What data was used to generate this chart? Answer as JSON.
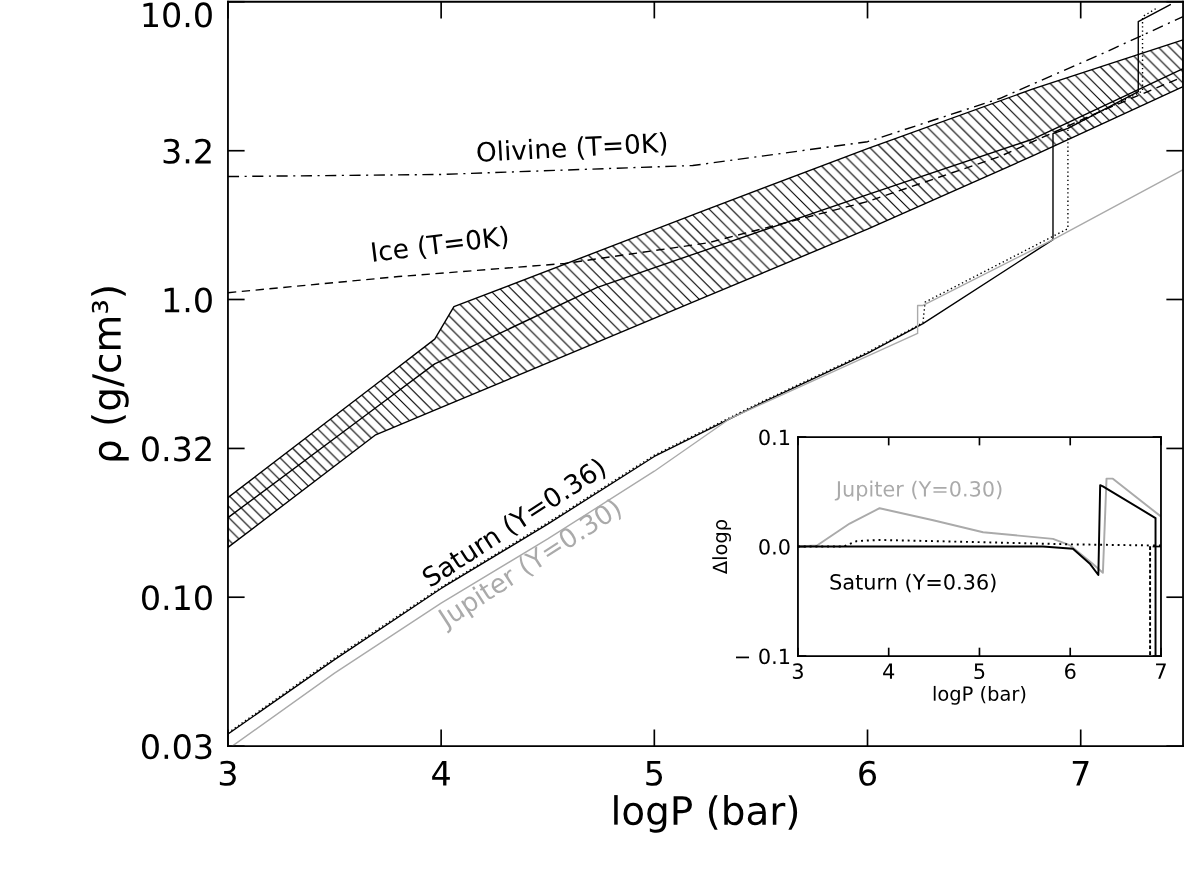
{
  "chart_data": [
    {
      "type": "line",
      "xlabel": "logP (bar)",
      "ylabel": "ρ (g/cm³)",
      "log": "y",
      "xlim": [
        3,
        7.48
      ],
      "xticks": [
        3,
        4,
        5,
        6,
        7
      ],
      "ylim": [
        0.0316,
        10
      ],
      "yticks": [
        {
          "value": 0.0316,
          "label": "0.03"
        },
        {
          "value": 0.1,
          "label": "0.10"
        },
        {
          "value": 0.316,
          "label": "0.32"
        },
        {
          "value": 1,
          "label": "1.0"
        },
        {
          "value": 3.16,
          "label": "3.2"
        },
        {
          "value": 10,
          "label": "10.0"
        }
      ],
      "grid": false,
      "series": [
        {
          "color": "#000000",
          "line_style": "solid",
          "x": [
            3,
            3.69,
            3.97,
            4.06,
            4.73,
            5.22,
            6.0,
            6.78,
            7.48
          ],
          "values": [
            0.185,
            0.431,
            0.608,
            0.652,
            1.096,
            1.449,
            2.249,
            3.467,
            5.957
          ],
          "lower": [
            0.147,
            0.35,
            0.425,
            0.452,
            0.718,
            1.007,
            1.722,
            3.048,
            5.188
          ],
          "upper": [
            0.216,
            0.516,
            0.736,
            0.946,
            1.445,
            1.972,
            3.214,
            5.105,
            7.447
          ]
        },
        {
          "name": "Ice (T=0K)",
          "color": "#000000",
          "line_style": "dashed",
          "x": [
            3,
            3.8,
            4.58,
            5.25,
            6.0,
            6.62,
            7.09,
            7.48
          ],
          "values": [
            1.054,
            1.194,
            1.321,
            1.549,
            2.133,
            3.02,
            4.276,
            5.598
          ]
        },
        {
          "name": "Olivine (T=0K)",
          "color": "#000000",
          "line_style": "dashdot",
          "x": [
            3,
            4.0,
            5.18,
            6.0,
            6.62,
            7.09,
            7.48
          ],
          "values": [
            2.588,
            2.63,
            2.818,
            3.388,
            4.732,
            6.637,
            8.913
          ]
        },
        {
          "name": "Saturn (Y=0.36)",
          "color": "#000000",
          "line_style": "solid",
          "x": [
            3,
            3.5,
            4,
            4.5,
            5,
            5.5,
            6,
            6.26,
            6.87,
            6.87,
            6.94,
            7.27,
            7.27,
            7.42
          ],
          "values": [
            0.0347,
            0.0617,
            0.107,
            0.176,
            0.297,
            0.448,
            0.659,
            0.83,
            1.589,
            3.606,
            3.758,
            4.989,
            8.57,
            9.772
          ]
        },
        {
          "color": "#000000",
          "line_style": "dotted",
          "x": [
            3,
            3.5,
            4,
            4.5,
            5,
            5.5,
            6,
            6.26,
            6.27,
            6.94,
            6.94,
            7.29,
            7.29,
            7.36
          ],
          "values": [
            0.035,
            0.0625,
            0.108,
            0.178,
            0.3,
            0.452,
            0.665,
            0.835,
            0.98,
            1.73,
            3.776,
            5.012,
            8.913,
            9.55
          ]
        },
        {
          "name": "Jupiter (Y=0.30)",
          "color": "#aaaaaa",
          "line_style": "solid",
          "x": [
            3.02,
            3.5,
            4,
            4.5,
            5,
            5.357,
            6.235,
            6.235,
            6.26,
            6.87,
            7.48
          ],
          "values": [
            0.0316,
            0.0556,
            0.0955,
            0.157,
            0.265,
            0.399,
            0.769,
            0.955,
            0.955,
            1.589,
            2.729
          ]
        }
      ]
    },
    {
      "type": "line",
      "xlabel": "logP (bar)",
      "ylabel": "Δlogρ",
      "xlim": [
        3,
        7
      ],
      "xticks": [
        3,
        4,
        5,
        6,
        7
      ],
      "ylim": [
        -0.1,
        0.1
      ],
      "yticks": [
        {
          "value": -0.1,
          "label": "− 0.1"
        },
        {
          "value": 0,
          "label": "0.0"
        },
        {
          "value": 0.1,
          "label": "0.1"
        }
      ],
      "grid": false,
      "series": [
        {
          "name": "Jupiter (Y=0.30)",
          "color": "#aaaaaa",
          "line_style": "solid",
          "x": [
            3,
            3.21,
            3.57,
            3.9,
            4.49,
            5.04,
            5.81,
            6.0,
            6.25,
            6.36,
            6.4,
            6.47,
            6.99
          ],
          "values": [
            0,
            0.001,
            0.021,
            0.035,
            0.024,
            0.013,
            0.007,
            0.001,
            -0.016,
            -0.024,
            0.062,
            0.062,
            0.028
          ]
        },
        {
          "name": "Saturn (Y=0.36)",
          "color": "#000000",
          "line_style": "solid",
          "x": [
            3,
            5.7,
            6.03,
            6.22,
            6.31,
            6.33,
            6.36,
            6.94,
            6.94
          ],
          "values": [
            0,
            0,
            -0.002,
            -0.016,
            -0.026,
            0.056,
            0.055,
            0.026,
            -0.1
          ]
        },
        {
          "color": "#000000",
          "line_style": "dotted",
          "x": [
            3,
            3.5,
            3.65,
            3.9,
            5,
            6,
            6.88,
            6.88,
            6.88,
            7.0
          ],
          "values": [
            0,
            0,
            0.005,
            0.006,
            0.004,
            0.002,
            0.001,
            -0.1,
            0.001,
            0.001
          ]
        }
      ]
    }
  ]
}
